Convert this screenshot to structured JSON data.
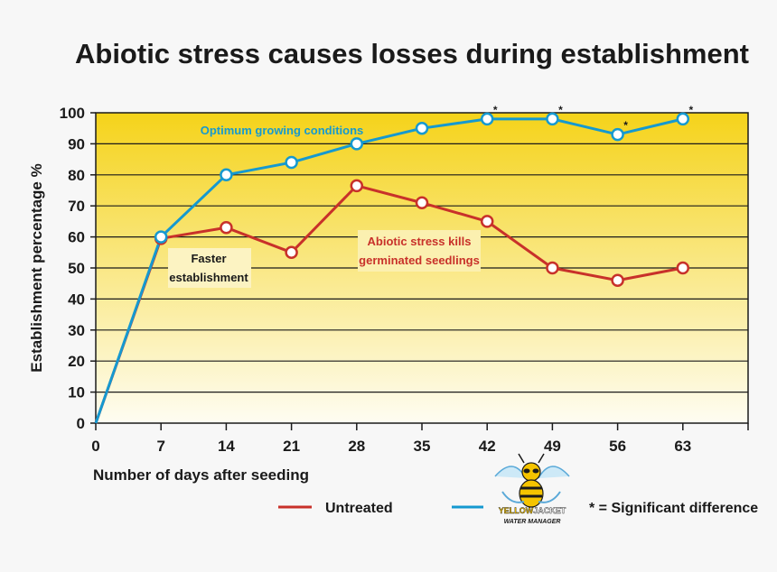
{
  "chart_data": {
    "type": "line",
    "title": "Abiotic stress causes losses during establishment",
    "xlabel": "Number of days after seeding",
    "ylabel": "Establishment percentage %",
    "x": [
      0,
      7,
      14,
      21,
      28,
      35,
      42,
      49,
      56,
      63
    ],
    "xlim": [
      0,
      70
    ],
    "ylim": [
      0,
      100
    ],
    "yticks": [
      0,
      10,
      20,
      30,
      40,
      50,
      60,
      70,
      80,
      90,
      100
    ],
    "xtick_labels": [
      "0",
      "7",
      "14",
      "21",
      "28",
      "35",
      "42",
      "49",
      "56",
      "63"
    ],
    "ytick_labels": [
      "0",
      "10",
      "20",
      "30",
      "40",
      "50",
      "60",
      "70",
      "80",
      "90",
      "100"
    ],
    "grid": "horizontal",
    "series": [
      {
        "name": "Untreated",
        "color": "#c8312a",
        "values": [
          0,
          59.5,
          63,
          55,
          76.5,
          71,
          65,
          50,
          46,
          50
        ]
      },
      {
        "name": "Optimum growing conditions",
        "color": "#1599d0",
        "values": [
          0,
          60,
          80,
          84,
          90,
          95,
          98,
          98,
          93,
          98
        ]
      }
    ],
    "significant_marker": "*",
    "significant_x": [
      42,
      49,
      56,
      63
    ],
    "annotations": {
      "optimum": "Optimum growing conditions",
      "abiotic_line1": "Abiotic stress kills",
      "abiotic_line2": "germinated seedlings",
      "faster_line1": "Faster",
      "faster_line2": "establishment"
    },
    "legend": {
      "untreated": "Untreated",
      "significance": "* = Significant difference"
    },
    "logo": {
      "brand_part1": "YELLOW",
      "brand_part2": "JACKET",
      "tagline": "WATER MANAGER"
    },
    "colors": {
      "gradient_top": "#f5d31a",
      "gradient_bottom": "#fefdf2",
      "grid": "#1a1a1a"
    }
  }
}
